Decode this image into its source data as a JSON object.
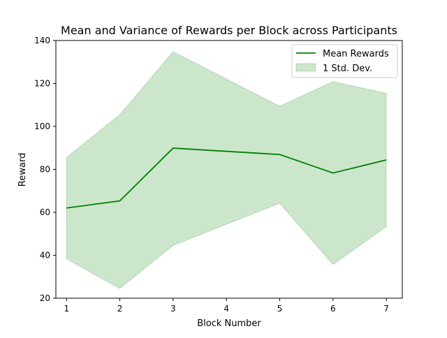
{
  "chart_data": {
    "type": "line",
    "title": "Mean and Variance of Rewards per Block across Participants",
    "xlabel": "Block Number",
    "ylabel": "Reward",
    "x": [
      1,
      2,
      3,
      5,
      6,
      7
    ],
    "xticks": [
      1,
      2,
      3,
      4,
      5,
      6,
      7
    ],
    "yticks": [
      20,
      40,
      60,
      80,
      100,
      120,
      140
    ],
    "xlim": [
      0.8,
      7.3
    ],
    "ylim": [
      20,
      140
    ],
    "grid": false,
    "legend_position": "top-right",
    "series": [
      {
        "name": "Mean Rewards",
        "kind": "line",
        "color": "#008000",
        "values": [
          62,
          65.3,
          89.9,
          86.9,
          78.3,
          84.4
        ]
      },
      {
        "name": "1 Std. Dev.",
        "kind": "band",
        "color": "#008000",
        "opacity": 0.2,
        "lower": [
          38.3,
          24.5,
          44.6,
          64.2,
          35.7,
          53.3
        ],
        "upper": [
          85.6,
          105.5,
          134.8,
          109.4,
          120.9,
          115.4
        ]
      }
    ]
  }
}
